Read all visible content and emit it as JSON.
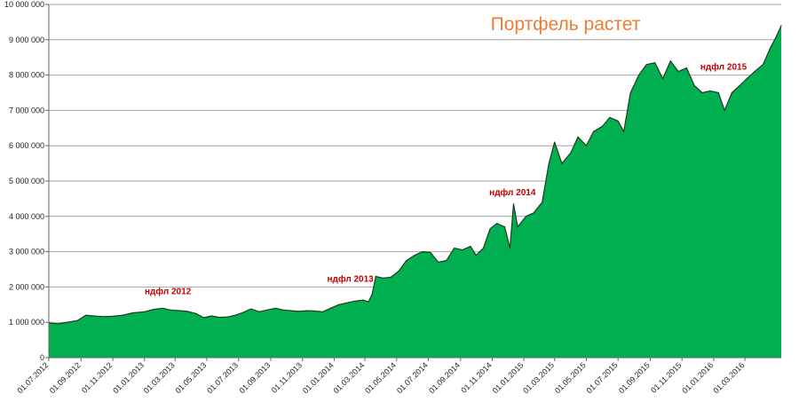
{
  "chart_data": {
    "type": "area",
    "title": "Портфель растет",
    "xlabel": "",
    "ylabel": "",
    "ylim": [
      0,
      10000000
    ],
    "grid": true,
    "legend": "none",
    "colors": {
      "fill": "#00b050",
      "line": "#1e3a1e",
      "title": "#ed7d31",
      "annotation": "#c00000",
      "grid": "#a6a6a6"
    },
    "y_ticks": [
      {
        "value": 0,
        "label": "0"
      },
      {
        "value": 1000000,
        "label": "1 000 000"
      },
      {
        "value": 2000000,
        "label": "2 000 000"
      },
      {
        "value": 3000000,
        "label": "3 000 000"
      },
      {
        "value": 4000000,
        "label": "4 000 000"
      },
      {
        "value": 5000000,
        "label": "5 000 000"
      },
      {
        "value": 6000000,
        "label": "6 000 000"
      },
      {
        "value": 7000000,
        "label": "7 000 000"
      },
      {
        "value": 8000000,
        "label": "8 000 000"
      },
      {
        "value": 9000000,
        "label": "9 000 000"
      },
      {
        "value": 10000000,
        "label": "10 000 000"
      }
    ],
    "x_ticks": [
      {
        "date": "2012-07-01",
        "label": "01.07.2012"
      },
      {
        "date": "2012-09-01",
        "label": "01.09.2012"
      },
      {
        "date": "2012-11-01",
        "label": "01.11.2012"
      },
      {
        "date": "2013-01-01",
        "label": "01.01.2013"
      },
      {
        "date": "2013-03-01",
        "label": "01.03.2013"
      },
      {
        "date": "2013-05-01",
        "label": "01.05.2013"
      },
      {
        "date": "2013-07-01",
        "label": "01.07.2013"
      },
      {
        "date": "2013-09-01",
        "label": "01.09.2013"
      },
      {
        "date": "2013-11-01",
        "label": "01.11.2013"
      },
      {
        "date": "2014-01-01",
        "label": "01.01.2014"
      },
      {
        "date": "2014-03-01",
        "label": "01.03.2014"
      },
      {
        "date": "2014-05-01",
        "label": "01.05.2014"
      },
      {
        "date": "2014-07-01",
        "label": "01.07.2014"
      },
      {
        "date": "2014-09-01",
        "label": "01.09.2014"
      },
      {
        "date": "2014-11-01",
        "label": "01.11.2014"
      },
      {
        "date": "2015-01-01",
        "label": "01.01.2015"
      },
      {
        "date": "2015-03-01",
        "label": "01.03.2015"
      },
      {
        "date": "2015-05-01",
        "label": "01.05.2015"
      },
      {
        "date": "2015-07-01",
        "label": "01.07.2015"
      },
      {
        "date": "2015-09-01",
        "label": "01.09.2015"
      },
      {
        "date": "2015-11-01",
        "label": "01.11.2015"
      },
      {
        "date": "2016-01-01",
        "label": "01.01.2016"
      },
      {
        "date": "2016-03-01",
        "label": "01.03.2016"
      }
    ],
    "x_range": [
      "2012-07-01",
      "2016-05-10"
    ],
    "series": [
      {
        "points": [
          [
            "2012-07-01",
            980000
          ],
          [
            "2012-07-20",
            960000
          ],
          [
            "2012-08-05",
            1000000
          ],
          [
            "2012-08-25",
            1050000
          ],
          [
            "2012-09-10",
            1200000
          ],
          [
            "2012-09-25",
            1180000
          ],
          [
            "2012-10-15",
            1160000
          ],
          [
            "2012-11-01",
            1170000
          ],
          [
            "2012-11-20",
            1200000
          ],
          [
            "2012-12-10",
            1270000
          ],
          [
            "2013-01-01",
            1300000
          ],
          [
            "2013-01-20",
            1370000
          ],
          [
            "2013-02-05",
            1400000
          ],
          [
            "2013-02-20",
            1350000
          ],
          [
            "2013-03-10",
            1330000
          ],
          [
            "2013-03-25",
            1310000
          ],
          [
            "2013-04-10",
            1250000
          ],
          [
            "2013-04-25",
            1130000
          ],
          [
            "2013-05-10",
            1180000
          ],
          [
            "2013-05-25",
            1140000
          ],
          [
            "2013-06-10",
            1150000
          ],
          [
            "2013-06-25",
            1200000
          ],
          [
            "2013-07-10",
            1280000
          ],
          [
            "2013-07-25",
            1380000
          ],
          [
            "2013-08-10",
            1300000
          ],
          [
            "2013-08-25",
            1350000
          ],
          [
            "2013-09-10",
            1400000
          ],
          [
            "2013-09-25",
            1350000
          ],
          [
            "2013-10-10",
            1330000
          ],
          [
            "2013-10-25",
            1310000
          ],
          [
            "2013-11-10",
            1330000
          ],
          [
            "2013-11-25",
            1320000
          ],
          [
            "2013-12-10",
            1300000
          ],
          [
            "2013-12-25",
            1400000
          ],
          [
            "2014-01-10",
            1500000
          ],
          [
            "2014-01-25",
            1550000
          ],
          [
            "2014-02-10",
            1600000
          ],
          [
            "2014-02-25",
            1630000
          ],
          [
            "2014-03-08",
            1580000
          ],
          [
            "2014-03-15",
            1800000
          ],
          [
            "2014-03-22",
            2300000
          ],
          [
            "2014-04-05",
            2250000
          ],
          [
            "2014-04-20",
            2280000
          ],
          [
            "2014-05-05",
            2450000
          ],
          [
            "2014-05-20",
            2750000
          ],
          [
            "2014-06-05",
            2900000
          ],
          [
            "2014-06-20",
            3000000
          ],
          [
            "2014-07-05",
            2980000
          ],
          [
            "2014-07-20",
            2700000
          ],
          [
            "2014-08-05",
            2750000
          ],
          [
            "2014-08-20",
            3100000
          ],
          [
            "2014-09-05",
            3050000
          ],
          [
            "2014-09-20",
            3150000
          ],
          [
            "2014-10-01",
            2900000
          ],
          [
            "2014-10-15",
            3100000
          ],
          [
            "2014-10-28",
            3650000
          ],
          [
            "2014-11-10",
            3800000
          ],
          [
            "2014-11-25",
            3700000
          ],
          [
            "2014-12-05",
            3100000
          ],
          [
            "2014-12-12",
            4350000
          ],
          [
            "2014-12-20",
            3700000
          ],
          [
            "2015-01-05",
            4000000
          ],
          [
            "2015-01-20",
            4100000
          ],
          [
            "2015-02-05",
            4400000
          ],
          [
            "2015-02-18",
            5500000
          ],
          [
            "2015-03-01",
            6100000
          ],
          [
            "2015-03-15",
            5500000
          ],
          [
            "2015-04-01",
            5800000
          ],
          [
            "2015-04-15",
            6250000
          ],
          [
            "2015-05-01",
            6000000
          ],
          [
            "2015-05-15",
            6400000
          ],
          [
            "2015-06-01",
            6550000
          ],
          [
            "2015-06-15",
            6800000
          ],
          [
            "2015-07-01",
            6700000
          ],
          [
            "2015-07-12",
            6400000
          ],
          [
            "2015-07-25",
            7500000
          ],
          [
            "2015-08-10",
            8000000
          ],
          [
            "2015-08-25",
            8300000
          ],
          [
            "2015-09-10",
            8350000
          ],
          [
            "2015-09-25",
            7900000
          ],
          [
            "2015-10-10",
            8400000
          ],
          [
            "2015-10-25",
            8100000
          ],
          [
            "2015-11-10",
            8200000
          ],
          [
            "2015-11-25",
            7700000
          ],
          [
            "2015-12-10",
            7500000
          ],
          [
            "2015-12-25",
            7550000
          ],
          [
            "2016-01-10",
            7500000
          ],
          [
            "2016-01-22",
            7000000
          ],
          [
            "2016-02-05",
            7500000
          ],
          [
            "2016-02-20",
            7700000
          ],
          [
            "2016-03-05",
            7900000
          ],
          [
            "2016-03-20",
            8100000
          ],
          [
            "2016-04-05",
            8300000
          ],
          [
            "2016-04-20",
            8800000
          ],
          [
            "2016-05-01",
            9100000
          ],
          [
            "2016-05-10",
            9400000
          ]
        ]
      }
    ],
    "annotations": [
      {
        "text": "ндфл 2012",
        "date": "2013-02-15",
        "value": 1800000
      },
      {
        "text": "ндфл 2013",
        "date": "2014-02-01",
        "value": 2150000
      },
      {
        "text": "ндфл 2014",
        "date": "2014-12-10",
        "value": 4600000
      },
      {
        "text": "ндфл 2015",
        "date": "2016-01-20",
        "value": 8150000
      }
    ]
  }
}
